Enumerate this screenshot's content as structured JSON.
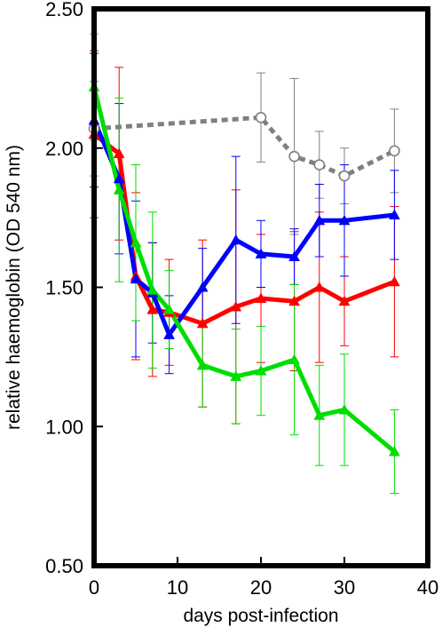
{
  "chart_data": {
    "type": "line",
    "title": "",
    "xlabel": "days post-infection",
    "ylabel": "relative haemoglobin (OD 540 nm)",
    "xlim": [
      0,
      40
    ],
    "ylim": [
      0.5,
      2.5
    ],
    "x_ticks": [
      0,
      10,
      20,
      30,
      40
    ],
    "x_tick_labels": [
      "0",
      "10",
      "20",
      "30",
      "40"
    ],
    "y_ticks": [
      0.5,
      1.0,
      1.5,
      2.0,
      2.5
    ],
    "y_tick_labels": [
      "0.50",
      "1.00",
      "1.50",
      "2.00",
      "2.50"
    ],
    "grid": false,
    "legend": "none",
    "series": [
      {
        "color": "#808080",
        "line_style": "dotted",
        "marker": "open-circle",
        "x": [
          0,
          20,
          24,
          27,
          30,
          36
        ],
        "values": [
          2.07,
          2.11,
          1.97,
          1.94,
          1.9,
          1.99
        ],
        "error": [
          0.17,
          0.16,
          0.28,
          0.12,
          0.1,
          0.15
        ]
      },
      {
        "color": "#ff0000",
        "line_style": "solid",
        "marker": "filled-triangle",
        "x": [
          0,
          3,
          5,
          7,
          9,
          13,
          17,
          20,
          24,
          27,
          30,
          36
        ],
        "values": [
          2.05,
          1.98,
          1.54,
          1.42,
          1.41,
          1.37,
          1.43,
          1.46,
          1.45,
          1.5,
          1.45,
          1.52
        ],
        "error": [
          0.3,
          0.31,
          0.3,
          0.24,
          0.19,
          0.3,
          0.42,
          0.23,
          0.25,
          0.27,
          0.16,
          0.27
        ]
      },
      {
        "color": "#0000ff",
        "line_style": "solid",
        "marker": "filled-triangle",
        "x": [
          0,
          3,
          5,
          7,
          9,
          13,
          17,
          20,
          24,
          27,
          30,
          36
        ],
        "values": [
          2.1,
          1.89,
          1.53,
          1.48,
          1.33,
          1.5,
          1.67,
          1.62,
          1.61,
          1.74,
          1.74,
          1.76
        ],
        "error": [
          0.24,
          0.27,
          0.28,
          0.18,
          0.14,
          0.14,
          0.3,
          0.12,
          0.1,
          0.13,
          0.2,
          0.16
        ]
      },
      {
        "color": "#00dd00",
        "line_style": "solid",
        "marker": "filled-triangle",
        "x": [
          0,
          3,
          5,
          7,
          9,
          13,
          17,
          20,
          24,
          27,
          30,
          36
        ],
        "values": [
          2.22,
          1.85,
          1.66,
          1.49,
          1.42,
          1.22,
          1.18,
          1.2,
          1.24,
          1.04,
          1.06,
          0.91
        ],
        "error": [
          0.19,
          0.33,
          0.28,
          0.28,
          0.14,
          0.15,
          0.17,
          0.16,
          0.27,
          0.18,
          0.2,
          0.15
        ]
      }
    ]
  }
}
